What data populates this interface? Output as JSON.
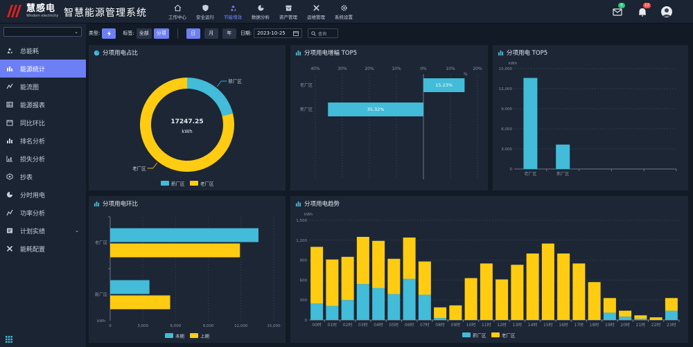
{
  "app": {
    "logo_cn": "慧感电",
    "logo_en": "Wisdom electricity",
    "title": "智慧能源管理系统"
  },
  "nav": [
    {
      "label": "工作中心",
      "icon": "home-icon"
    },
    {
      "label": "安全运行",
      "icon": "shield-icon"
    },
    {
      "label": "节能增效",
      "icon": "recycle-icon",
      "active": true
    },
    {
      "label": "数据分析",
      "icon": "pie-icon"
    },
    {
      "label": "资产管理",
      "icon": "archive-icon"
    },
    {
      "label": "运维管理",
      "icon": "tools-icon"
    },
    {
      "label": "系统设置",
      "icon": "gear-icon"
    }
  ],
  "top_right": {
    "messages_badge": "0",
    "alerts_badge": "12"
  },
  "colors": {
    "accent": "#6d7ff5",
    "cyan": "#42bcd8",
    "yellow": "#ffcc12",
    "badge_green": "#2ec27e",
    "badge_red": "#ff4d4f"
  },
  "sidebar": {
    "select_value": "",
    "items": [
      {
        "label": "总能耗",
        "icon": "recycle-icon"
      },
      {
        "label": "能源统计",
        "icon": "energy-stats-icon",
        "active": true
      },
      {
        "label": "能流图",
        "icon": "flow-icon"
      },
      {
        "label": "能源报表",
        "icon": "table-icon"
      },
      {
        "label": "同比环比",
        "icon": "calendar-icon"
      },
      {
        "label": "排名分析",
        "icon": "ranking-icon"
      },
      {
        "label": "损失分析",
        "icon": "bar-chart-icon"
      },
      {
        "label": "抄表",
        "icon": "meter-icon"
      },
      {
        "label": "分时用电",
        "icon": "time-icon"
      },
      {
        "label": "功率分析",
        "icon": "power-icon"
      },
      {
        "label": "计划实绩",
        "icon": "plan-icon",
        "has_sub": true
      },
      {
        "label": "能耗配置",
        "icon": "config-icon"
      }
    ]
  },
  "filters": {
    "type_label": "类型:",
    "type_icon": "lightning-icon",
    "tag_label": "标签:",
    "tag_options": [
      "全部",
      "分项"
    ],
    "period_options": [
      "日",
      "月",
      "年"
    ],
    "date_label": "日期:",
    "date_value": "2023-10-25",
    "search_label": "查询"
  },
  "panels": {
    "p1": {
      "title": "分项用电占比",
      "center_value": "17247.25",
      "center_unit": "kWh"
    },
    "p2": {
      "title": "分项用电增幅 TOP5"
    },
    "p3": {
      "title": "分项用电 TOP5"
    },
    "p4": {
      "title": "分项用电环比"
    },
    "p5": {
      "title": "分项用电趋势"
    }
  },
  "chart_data": [
    {
      "type": "pie",
      "title": "分项用电占比",
      "donut": true,
      "slices": [
        {
          "name": "新厂区",
          "value": 3650,
          "color": "#42bcd8"
        },
        {
          "name": "老厂区",
          "value": 13597.25,
          "color": "#ffcc12"
        }
      ],
      "legend": [
        "新厂区",
        "老厂区"
      ],
      "legend_position": "bottom"
    },
    {
      "type": "bar",
      "orientation": "horizontal",
      "title": "分项用电增幅 TOP5",
      "xlabel": "%",
      "xlim": [
        -40,
        20
      ],
      "xticks": [
        "40%",
        "30%",
        "20%",
        "10%",
        "0%",
        "10%",
        "20%"
      ],
      "categories": [
        "老厂区",
        "新厂区"
      ],
      "values": [
        15.23,
        -35.32
      ],
      "labels": [
        "15.23%",
        "35.32%"
      ]
    },
    {
      "type": "bar",
      "title": "分项用电 TOP5",
      "ylabel": "kWh",
      "ylim": [
        0,
        15000
      ],
      "yticks": [
        "0",
        "3,000",
        "6,000",
        "9,000",
        "12,000",
        "15,000"
      ],
      "categories": [
        "老厂区",
        "新厂区"
      ],
      "values": [
        13600,
        3650
      ],
      "slots": 5
    },
    {
      "type": "bar",
      "orientation": "horizontal",
      "title": "分项用电环比",
      "xlabel": "kWh",
      "xlim": [
        0,
        15000
      ],
      "xticks": [
        "0",
        "3,000",
        "6,000",
        "9,000",
        "12,000",
        "15,000"
      ],
      "categories": [
        "老厂区",
        "新厂区"
      ],
      "series": [
        {
          "name": "本期",
          "values": [
            13600,
            3600
          ],
          "color": "#42bcd8"
        },
        {
          "name": "上期",
          "values": [
            11900,
            5500
          ],
          "color": "#ffcc12"
        }
      ],
      "legend_position": "bottom"
    },
    {
      "type": "bar",
      "stacked": true,
      "title": "分项用电趋势",
      "ylabel": "kWh",
      "ylim": [
        0,
        1500
      ],
      "yticks": [
        "0",
        "300",
        "600",
        "900",
        "1,200",
        "1,500"
      ],
      "categories": [
        "00时",
        "01时",
        "02时",
        "03时",
        "04时",
        "05时",
        "06时",
        "07时",
        "08时",
        "09时",
        "10时",
        "11时",
        "12时",
        "13时",
        "14时",
        "15时",
        "16时",
        "17时",
        "18时",
        "19时",
        "20时",
        "21时",
        "22时",
        "23时"
      ],
      "series": [
        {
          "name": "新厂区",
          "color": "#42bcd8",
          "values": [
            250,
            210,
            300,
            540,
            480,
            390,
            620,
            380,
            30,
            0,
            0,
            0,
            0,
            0,
            0,
            0,
            0,
            0,
            0,
            110,
            50,
            20,
            0,
            140
          ]
        },
        {
          "name": "老厂区",
          "color": "#ffcc12",
          "values": [
            850,
            700,
            650,
            710,
            710,
            530,
            620,
            500,
            160,
            220,
            630,
            850,
            610,
            830,
            1000,
            1150,
            1000,
            850,
            570,
            220,
            90,
            50,
            40,
            190
          ]
        }
      ],
      "legend_position": "bottom"
    }
  ]
}
